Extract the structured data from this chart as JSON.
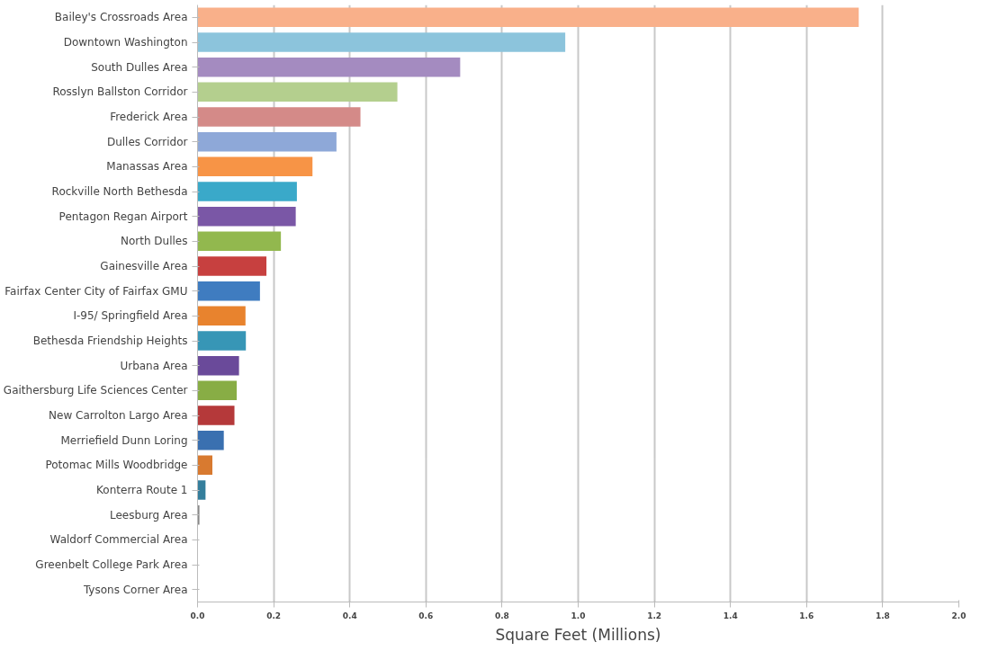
{
  "chart_data": {
    "type": "bar",
    "orientation": "horizontal",
    "xlabel": "Square Feet (Millions)",
    "categories": [
      "Bailey's Crossroads Area",
      "Downtown Washington",
      "South Dulles Area",
      "Rosslyn Ballston Corridor",
      "Frederick Area",
      "Dulles Corridor",
      "Manassas Area",
      "Rockville North Bethesda",
      "Pentagon Regan Airport",
      "North Dulles",
      "Gainesville Area",
      "Fairfax Center City of Fairfax GMU",
      "I-95/ Springfield Area",
      "Bethesda Friendship Heights",
      "Urbana Area",
      "Gaithersburg Life Sciences Center",
      "New Carrolton Largo Area",
      "Merriefield Dunn Loring",
      "Potomac Mills Woodbridge",
      "Konterra Route 1",
      "Leesburg Area",
      "Waldorf Commercial Area",
      "Greenbelt College Park Area",
      "Tysons Corner Area"
    ],
    "values": [
      1.737,
      0.966,
      0.69,
      0.525,
      0.428,
      0.365,
      0.302,
      0.261,
      0.258,
      0.219,
      0.181,
      0.164,
      0.126,
      0.127,
      0.109,
      0.103,
      0.097,
      0.069,
      0.039,
      0.021,
      0.005,
      null,
      null,
      null
    ],
    "colors": [
      "#f9b08a",
      "#8cc4dc",
      "#a48bc0",
      "#b4cf8e",
      "#d48a88",
      "#8ea8d8",
      "#f79446",
      "#3aa9c9",
      "#7a57a6",
      "#92b84e",
      "#c7403f",
      "#3f7cc0",
      "#e8832e",
      "#3796b6",
      "#6a4a9a",
      "#88ad45",
      "#b5393a",
      "#3a70b0",
      "#d87a30",
      "#347e9c",
      "#888888",
      "#aaaaaa",
      "#aaaaaa",
      "#888888"
    ],
    "xlim": [
      0,
      2.0
    ],
    "xticks": [
      {
        "value": 0,
        "label": "0.0"
      },
      {
        "value": 0.2,
        "label": "0.2"
      },
      {
        "value": 0.4,
        "label": "0.4"
      },
      {
        "value": 0.6,
        "label": "0.6"
      },
      {
        "value": 0.8,
        "label": "0.8"
      },
      {
        "value": 1.0,
        "label": "1.0"
      },
      {
        "value": 1.2,
        "label": "1.2"
      },
      {
        "value": 1.4,
        "label": "1.4"
      },
      {
        "value": 1.6,
        "label": "1.6"
      },
      {
        "value": 1.8,
        "label": "1.8"
      },
      {
        "value": 2.0,
        "label": "2.0"
      }
    ],
    "grid": "x"
  }
}
